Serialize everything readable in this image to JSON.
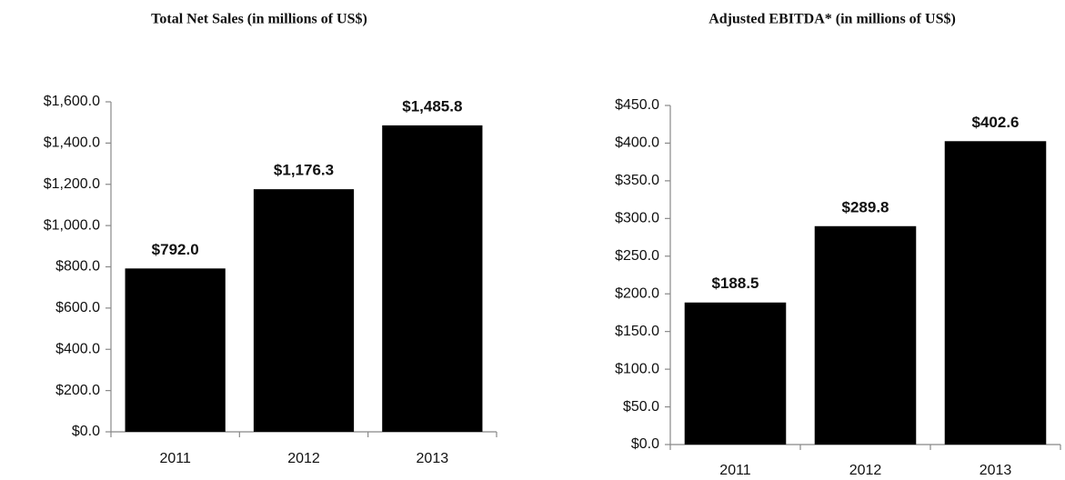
{
  "chart_data": [
    {
      "type": "bar",
      "title": "Total Net Sales (in millions of US$)",
      "categories": [
        "2011",
        "2012",
        "2013"
      ],
      "values": [
        792.0,
        1176.3,
        1485.8
      ],
      "value_labels": [
        "$792.0",
        "$1,176.3",
        "$1,485.8"
      ],
      "color": "#000000",
      "ylim": [
        0,
        1600
      ],
      "yticks": [
        {
          "value": 0,
          "label": "$0.0"
        },
        {
          "value": 200,
          "label": "$200.0"
        },
        {
          "value": 400,
          "label": "$400.0"
        },
        {
          "value": 600,
          "label": "$600.0"
        },
        {
          "value": 800,
          "label": "$800.0"
        },
        {
          "value": 1000,
          "label": "$1,000.0"
        },
        {
          "value": 1200,
          "label": "$1,200.0"
        },
        {
          "value": 1400,
          "label": "$1,400.0"
        },
        {
          "value": 1600,
          "label": "$1,600.0"
        }
      ],
      "grid": false
    },
    {
      "type": "bar",
      "title": "Adjusted EBITDA* (in millions of US$)",
      "categories": [
        "2011",
        "2012",
        "2013"
      ],
      "values": [
        188.5,
        289.8,
        402.6
      ],
      "value_labels": [
        "$188.5",
        "$289.8",
        "$402.6"
      ],
      "color": "#000000",
      "ylim": [
        0,
        450
      ],
      "yticks": [
        {
          "value": 0,
          "label": "$0.0"
        },
        {
          "value": 50,
          "label": "$50.0"
        },
        {
          "value": 100,
          "label": "$100.0"
        },
        {
          "value": 150,
          "label": "$150.0"
        },
        {
          "value": 200,
          "label": "$200.0"
        },
        {
          "value": 250,
          "label": "$250.0"
        },
        {
          "value": 300,
          "label": "$300.0"
        },
        {
          "value": 350,
          "label": "$350.0"
        },
        {
          "value": 400,
          "label": "$400.0"
        },
        {
          "value": 450,
          "label": "$450.0"
        }
      ],
      "grid": false
    }
  ]
}
